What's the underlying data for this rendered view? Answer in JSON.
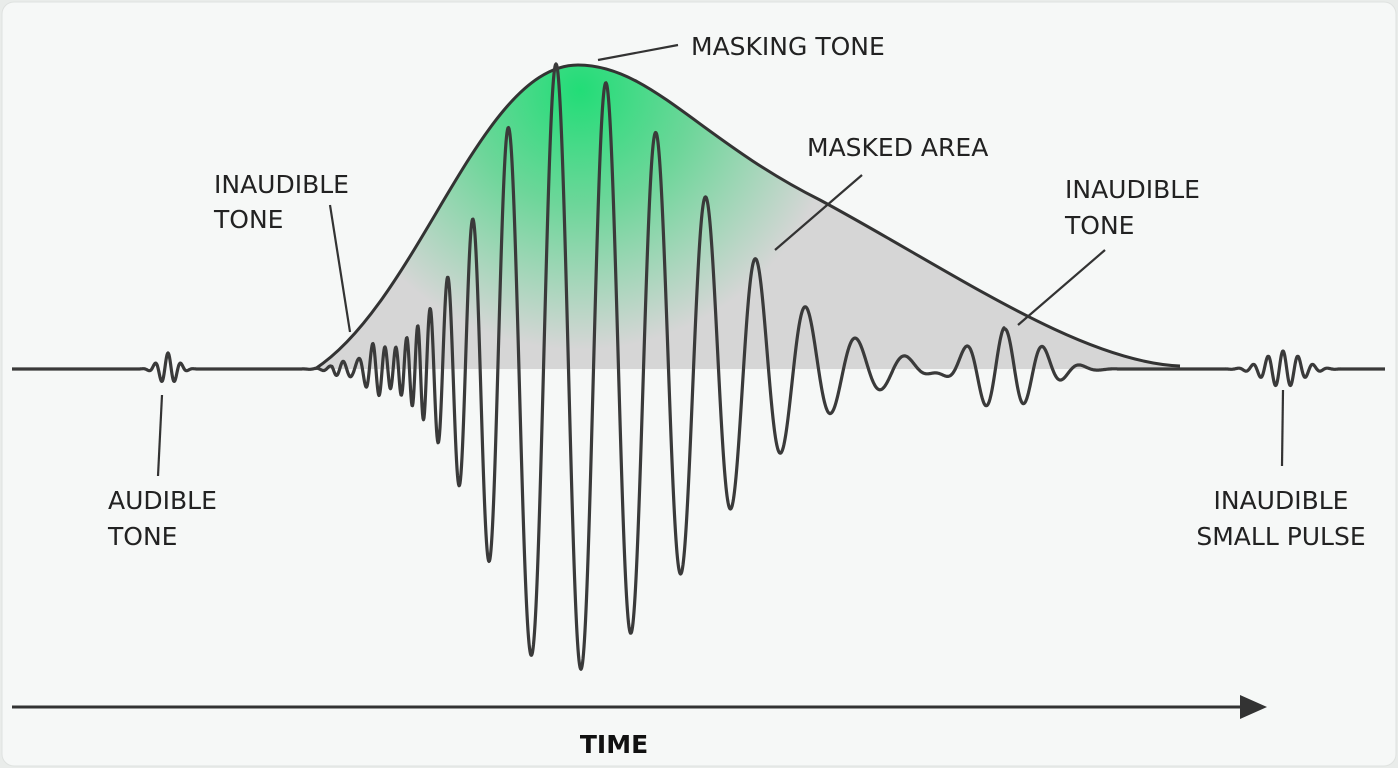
{
  "labels": {
    "masking_tone": "MASKING TONE",
    "masked_area": "MASKED AREA",
    "inaudible_tone_left": [
      "INAUDIBLE",
      "TONE"
    ],
    "inaudible_tone_right": [
      "INAUDIBLE",
      "TONE"
    ],
    "audible_tone": [
      "AUDIBLE",
      "TONE"
    ],
    "inaudible_small_pulse": [
      "INAUDIBLE",
      "SMALL PULSE"
    ]
  },
  "axis": {
    "label": "TIME"
  }
}
